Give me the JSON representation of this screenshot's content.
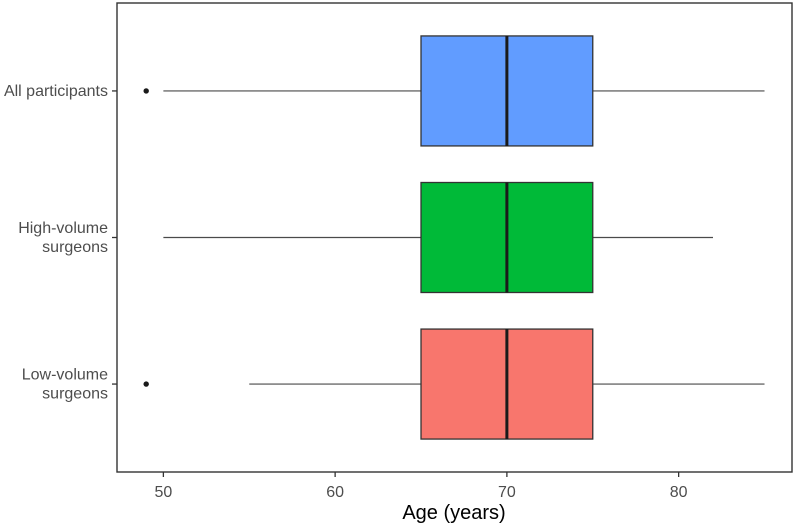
{
  "figure": {
    "background": "#FFFFFF"
  },
  "chart_data": {
    "type": "boxplot",
    "orientation": "horizontal",
    "xlabel": "Age (years)",
    "x_ticks": [
      50,
      60,
      70,
      80
    ],
    "xlim": [
      47.3,
      86.6
    ],
    "grid": "off",
    "legend": "none",
    "categories": [
      "All participants",
      "High-volume surgeons",
      "Low-volume surgeons"
    ],
    "category_label_lines": [
      [
        "All participants"
      ],
      [
        "High-volume",
        "surgeons"
      ],
      [
        "Low-volume",
        "surgeons"
      ]
    ],
    "series": [
      {
        "name": "All participants",
        "whisker_low": 50,
        "q1": 65,
        "median": 70,
        "q3": 75,
        "whisker_high": 85,
        "outliers": [
          49
        ],
        "fill": "#619CFF"
      },
      {
        "name": "High-volume surgeons",
        "whisker_low": 50,
        "q1": 65,
        "median": 70,
        "q3": 75,
        "whisker_high": 82,
        "outliers": [],
        "fill": "#00BA38"
      },
      {
        "name": "Low-volume surgeons",
        "whisker_low": 55,
        "q1": 65,
        "median": 70,
        "q3": 75,
        "whisker_high": 85,
        "outliers": [
          49
        ],
        "fill": "#F8766D"
      }
    ],
    "colors": {
      "panel_border": "#333333",
      "box_stroke": "#333333",
      "median_line": "#1A1A1A",
      "whisker": "#4A4A4A",
      "outlier": "#1A1A1A",
      "tick_mark": "#333333",
      "tick_label": "#4D4D4D",
      "axis_title": "#000000"
    }
  }
}
